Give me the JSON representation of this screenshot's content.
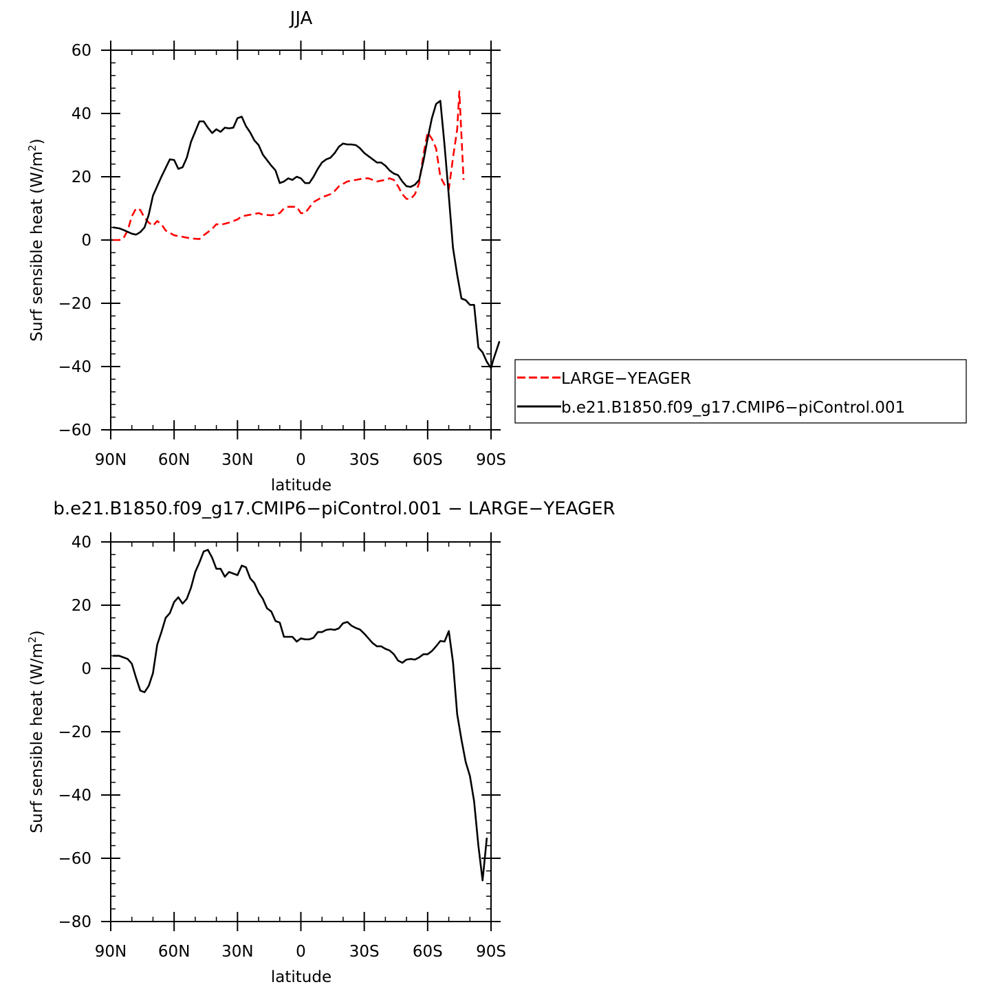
{
  "chart_data": [
    {
      "type": "line",
      "title": "JJA",
      "xlabel": "latitude",
      "ylabel": "Surf sensible heat (W/m",
      "ylabel_sup": "2",
      "ylabel_end": ")",
      "xlim": [
        -90,
        90
      ],
      "ylim": [
        -60,
        60
      ],
      "xticks": [
        {
          "v": -90,
          "label": "90N"
        },
        {
          "v": -60,
          "label": "60N"
        },
        {
          "v": -30,
          "label": "30N"
        },
        {
          "v": 0,
          "label": "0"
        },
        {
          "v": 30,
          "label": "30S"
        },
        {
          "v": 60,
          "label": "60S"
        },
        {
          "v": 90,
          "label": "90S"
        }
      ],
      "yticks": [
        -60,
        -40,
        -20,
        0,
        20,
        40,
        60
      ],
      "yminor_step": 4,
      "xminor_step": 10,
      "grid": false,
      "legend": {
        "placement": "right, outside plot",
        "entries": [
          "LARGE−YEAGER",
          "b.e21.B1850.f09_g17.CMIP6−piControl.001"
        ]
      },
      "series": [
        {
          "name": "LARGE−YEAGER",
          "color": "#ff0000",
          "dash": true,
          "points": [
            [
              -89,
              0
            ],
            [
              -86,
              0
            ],
            [
              -84,
              0.5
            ],
            [
              -82,
              3
            ],
            [
              -80,
              7.5
            ],
            [
              -78,
              10
            ],
            [
              -76,
              9.5
            ],
            [
              -74,
              7
            ],
            [
              -72,
              5.5
            ],
            [
              -70,
              4.5
            ],
            [
              -68,
              6
            ],
            [
              -66,
              5
            ],
            [
              -64,
              3
            ],
            [
              -60,
              1.5
            ],
            [
              -56,
              1
            ],
            [
              -52,
              0.5
            ],
            [
              -48,
              0.3
            ],
            [
              -46,
              1.5
            ],
            [
              -42,
              3.5
            ],
            [
              -40,
              5
            ],
            [
              -38,
              4.8
            ],
            [
              -34,
              5.5
            ],
            [
              -30,
              6.5
            ],
            [
              -28,
              7.5
            ],
            [
              -24,
              8
            ],
            [
              -20,
              8.5
            ],
            [
              -18,
              8
            ],
            [
              -14,
              7.8
            ],
            [
              -10,
              8.5
            ],
            [
              -8,
              10
            ],
            [
              -6,
              10.5
            ],
            [
              -2,
              10.5
            ],
            [
              0,
              8.5
            ],
            [
              2,
              8.5
            ],
            [
              6,
              12
            ],
            [
              10,
              13.5
            ],
            [
              14,
              14.5
            ],
            [
              16,
              15.5
            ],
            [
              18,
              17
            ],
            [
              22,
              18.5
            ],
            [
              26,
              19
            ],
            [
              30,
              19.5
            ],
            [
              32,
              19.5
            ],
            [
              36,
              18.5
            ],
            [
              40,
              19
            ],
            [
              42,
              19.5
            ],
            [
              44,
              19
            ],
            [
              46,
              17
            ],
            [
              48,
              14.5
            ],
            [
              50,
              13
            ],
            [
              52,
              13
            ],
            [
              54,
              14.5
            ],
            [
              56,
              18
            ],
            [
              58,
              27
            ],
            [
              60,
              34
            ],
            [
              62,
              32
            ],
            [
              64,
              29
            ],
            [
              66,
              20
            ],
            [
              68,
              17.5
            ],
            [
              70,
              16
            ],
            [
              72,
              26
            ],
            [
              74,
              35
            ],
            [
              75,
              47
            ],
            [
              76,
              33
            ],
            [
              77,
              19
            ]
          ]
        },
        {
          "name": "b.e21.B1850.f09_g17.CMIP6−piControl.001",
          "color": "#000000",
          "dash": false,
          "points": [
            [
              -89,
              4
            ],
            [
              -86,
              3.7
            ],
            [
              -84,
              3.2
            ],
            [
              -80,
              2
            ],
            [
              -78,
              1.7
            ],
            [
              -76,
              2.5
            ],
            [
              -74,
              4
            ],
            [
              -72,
              8
            ],
            [
              -70,
              14
            ],
            [
              -66,
              20
            ],
            [
              -62,
              25.5
            ],
            [
              -60,
              25.3
            ],
            [
              -58,
              22.5
            ],
            [
              -56,
              23
            ],
            [
              -54,
              26
            ],
            [
              -52,
              31
            ],
            [
              -48,
              37.5
            ],
            [
              -46,
              37.5
            ],
            [
              -44,
              35.5
            ],
            [
              -42,
              33.8
            ],
            [
              -40,
              35
            ],
            [
              -38,
              34.2
            ],
            [
              -36,
              35.5
            ],
            [
              -34,
              35.3
            ],
            [
              -32,
              35.5
            ],
            [
              -30,
              38.5
            ],
            [
              -28,
              39
            ],
            [
              -26,
              36
            ],
            [
              -24,
              34
            ],
            [
              -22,
              31.5
            ],
            [
              -20,
              30
            ],
            [
              -18,
              27
            ],
            [
              -14,
              23.5
            ],
            [
              -12,
              22
            ],
            [
              -10,
              18
            ],
            [
              -8,
              18.5
            ],
            [
              -6,
              19.5
            ],
            [
              -4,
              19
            ],
            [
              -2,
              20
            ],
            [
              0,
              19.5
            ],
            [
              2,
              18
            ],
            [
              4,
              18
            ],
            [
              6,
              20
            ],
            [
              8,
              22.5
            ],
            [
              10,
              24.5
            ],
            [
              12,
              25.5
            ],
            [
              14,
              26
            ],
            [
              16,
              27.5
            ],
            [
              18,
              29.5
            ],
            [
              20,
              30.5
            ],
            [
              22,
              30.2
            ],
            [
              24,
              30.2
            ],
            [
              26,
              30
            ],
            [
              28,
              29
            ],
            [
              30,
              27.5
            ],
            [
              32,
              26.5
            ],
            [
              34,
              25.5
            ],
            [
              36,
              24.5
            ],
            [
              38,
              24.5
            ],
            [
              40,
              23.5
            ],
            [
              42,
              22
            ],
            [
              44,
              21
            ],
            [
              46,
              20.5
            ],
            [
              48,
              18.5
            ],
            [
              50,
              17
            ],
            [
              52,
              16.8
            ],
            [
              54,
              17.5
            ],
            [
              56,
              19
            ],
            [
              58,
              25
            ],
            [
              60,
              32
            ],
            [
              62,
              38.5
            ],
            [
              64,
              43
            ],
            [
              66,
              44
            ],
            [
              68,
              30
            ],
            [
              70,
              14
            ],
            [
              72,
              -2.5
            ],
            [
              74,
              -11
            ],
            [
              76,
              -18.5
            ],
            [
              78,
              -19
            ],
            [
              80,
              -20.5
            ],
            [
              82,
              -20.5
            ],
            [
              84,
              -34
            ],
            [
              86,
              -35.5
            ],
            [
              88,
              -38.5
            ],
            [
              90,
              -40.5
            ],
            [
              91,
              -38
            ],
            [
              94,
              -32
            ]
          ]
        }
      ]
    },
    {
      "type": "line",
      "title": "b.e21.B1850.f09_g17.CMIP6−piControl.001  −  LARGE−YEAGER",
      "xlabel": "latitude",
      "ylabel": "Surf sensible heat (W/m",
      "ylabel_sup": "2",
      "ylabel_end": ")",
      "xlim": [
        -90,
        90
      ],
      "ylim": [
        -80,
        40
      ],
      "xticks": [
        {
          "v": -90,
          "label": "90N"
        },
        {
          "v": -60,
          "label": "60N"
        },
        {
          "v": -30,
          "label": "30N"
        },
        {
          "v": 0,
          "label": "0"
        },
        {
          "v": 30,
          "label": "30S"
        },
        {
          "v": 60,
          "label": "60S"
        },
        {
          "v": 90,
          "label": "90S"
        }
      ],
      "yticks": [
        -80,
        -60,
        -40,
        -20,
        0,
        20,
        40
      ],
      "yminor_step": 4,
      "xminor_step": 10,
      "grid": false,
      "series": [
        {
          "color": "#000000",
          "dash": false,
          "points": [
            [
              -89,
              4
            ],
            [
              -86,
              4
            ],
            [
              -84,
              3.5
            ],
            [
              -82,
              3
            ],
            [
              -80,
              1.5
            ],
            [
              -78,
              -3
            ],
            [
              -76,
              -7
            ],
            [
              -74,
              -7.5
            ],
            [
              -72,
              -5.5
            ],
            [
              -70,
              -1.5
            ],
            [
              -68,
              7.5
            ],
            [
              -66,
              11.5
            ],
            [
              -64,
              16
            ],
            [
              -62,
              17.5
            ],
            [
              -60,
              21
            ],
            [
              -58,
              22.5
            ],
            [
              -56,
              20.5
            ],
            [
              -54,
              22
            ],
            [
              -52,
              25.5
            ],
            [
              -50,
              30.5
            ],
            [
              -48,
              33.5
            ],
            [
              -46,
              37
            ],
            [
              -44,
              37.5
            ],
            [
              -42,
              35
            ],
            [
              -40,
              31.5
            ],
            [
              -38,
              31.5
            ],
            [
              -36,
              29
            ],
            [
              -34,
              30.5
            ],
            [
              -32,
              30
            ],
            [
              -30,
              29.5
            ],
            [
              -28,
              32.5
            ],
            [
              -26,
              32
            ],
            [
              -24,
              28.5
            ],
            [
              -22,
              27
            ],
            [
              -20,
              24
            ],
            [
              -18,
              22
            ],
            [
              -16,
              19
            ],
            [
              -14,
              18
            ],
            [
              -12,
              15
            ],
            [
              -10,
              14.5
            ],
            [
              -8,
              10
            ],
            [
              -6,
              10
            ],
            [
              -4,
              10
            ],
            [
              -2,
              8.5
            ],
            [
              0,
              9.5
            ],
            [
              2,
              9.2
            ],
            [
              4,
              9.2
            ],
            [
              6,
              9.7
            ],
            [
              8,
              11.5
            ],
            [
              10,
              11.5
            ],
            [
              12,
              12.2
            ],
            [
              14,
              12.4
            ],
            [
              16,
              12.2
            ],
            [
              18,
              12.7
            ],
            [
              20,
              14.3
            ],
            [
              22,
              14.7
            ],
            [
              24,
              13.5
            ],
            [
              26,
              12.8
            ],
            [
              28,
              12.3
            ],
            [
              30,
              11
            ],
            [
              32,
              9.5
            ],
            [
              34,
              8
            ],
            [
              36,
              7
            ],
            [
              38,
              7
            ],
            [
              40,
              6.2
            ],
            [
              42,
              5.7
            ],
            [
              44,
              4.5
            ],
            [
              46,
              2.5
            ],
            [
              48,
              1.8
            ],
            [
              50,
              2.8
            ],
            [
              52,
              3
            ],
            [
              54,
              2.8
            ],
            [
              56,
              3.5
            ],
            [
              58,
              4.5
            ],
            [
              60,
              4.5
            ],
            [
              62,
              5.5
            ],
            [
              64,
              7
            ],
            [
              66,
              8.7
            ],
            [
              68,
              8.5
            ],
            [
              70,
              11.8
            ],
            [
              72,
              2
            ],
            [
              74,
              -14.5
            ],
            [
              76,
              -22.5
            ],
            [
              78,
              -29.5
            ],
            [
              80,
              -34
            ],
            [
              82,
              -42
            ],
            [
              84,
              -56
            ],
            [
              86,
              -67
            ],
            [
              88,
              -53.5
            ]
          ]
        }
      ]
    }
  ]
}
